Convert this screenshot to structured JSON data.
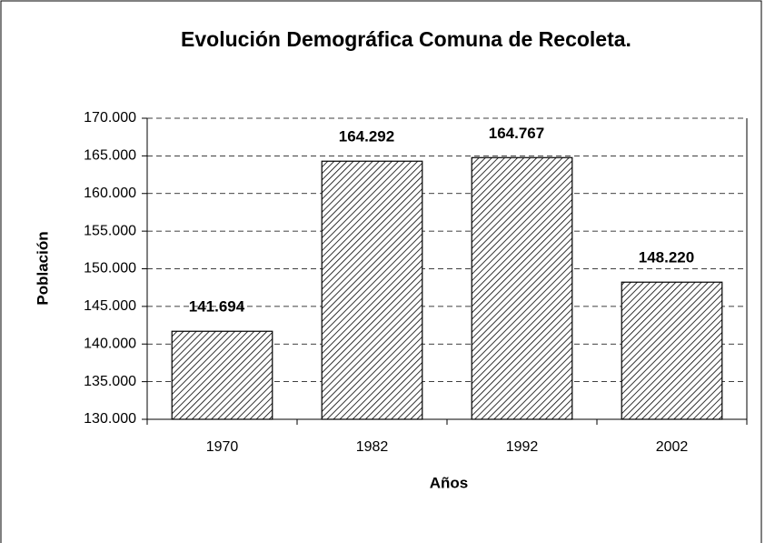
{
  "chart_data": {
    "type": "bar",
    "title": "Evolución Demográfica Comuna de Recoleta.",
    "x_label": "Años",
    "y_label": "Población",
    "categories": [
      "1970",
      "1982",
      "1992",
      "2002"
    ],
    "values": [
      141694,
      164292,
      164767,
      148220
    ],
    "value_labels": [
      "141.694",
      "164.292",
      "164.767",
      "148.220"
    ],
    "color": "#000000",
    "ylim": [
      130000,
      170000
    ],
    "yticks": [
      {
        "value": 130000,
        "label": "130.000"
      },
      {
        "value": 135000,
        "label": "135.000"
      },
      {
        "value": 140000,
        "label": "140.000"
      },
      {
        "value": 145000,
        "label": "145.000"
      },
      {
        "value": 150000,
        "label": "150.000"
      },
      {
        "value": 155000,
        "label": "155.000"
      },
      {
        "value": 160000,
        "label": "160.000"
      },
      {
        "value": 165000,
        "label": "165.000"
      },
      {
        "value": 170000,
        "label": "170.000"
      }
    ],
    "grid": true
  }
}
